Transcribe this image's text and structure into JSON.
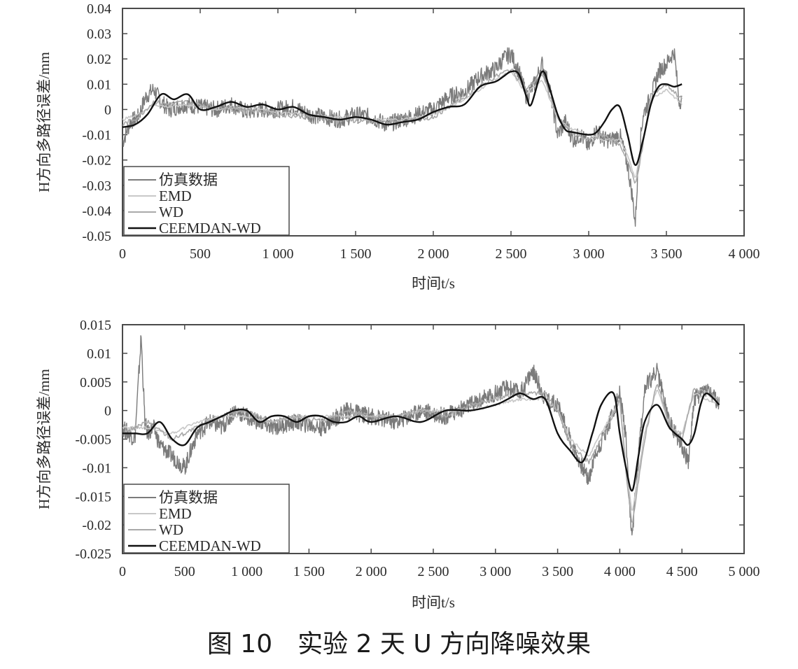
{
  "caption": "图 10　实验 2 天 U 方向降噪效果",
  "colors": {
    "raw": "#7b7b7b",
    "emd": "#c8c8c8",
    "wd": "#a9a9a9",
    "ceemdan": "#111111",
    "axis": "#4a4a4a"
  },
  "chart_data": [
    {
      "type": "line",
      "xlabel": "时间t/s",
      "ylabel": "H方向多路径误差/mm",
      "xlim": [
        0,
        4000
      ],
      "ylim": [
        -0.05,
        0.04
      ],
      "x_ticks": [
        0,
        500,
        1000,
        1500,
        2000,
        2500,
        3000,
        3500,
        4000
      ],
      "x_tick_labels": [
        "0",
        "500",
        "1 000",
        "1 500",
        "2 000",
        "2 500",
        "3 000",
        "3 500",
        "4 000"
      ],
      "y_ticks": [
        -0.05,
        -0.04,
        -0.03,
        -0.02,
        -0.01,
        0,
        0.01,
        0.02,
        0.03,
        0.04
      ],
      "y_tick_labels": [
        "-0.05",
        "-0.04",
        "-0.03",
        "-0.02",
        "-0.01",
        "0",
        "0.01",
        "0.02",
        "0.03",
        "0.04"
      ],
      "legend_position": "bottom-left",
      "series": [
        {
          "name": "仿真数据",
          "color_key": "raw",
          "x": [
            0,
            50,
            100,
            150,
            200,
            250,
            300,
            400,
            500,
            600,
            700,
            800,
            900,
            1000,
            1100,
            1200,
            1300,
            1400,
            1500,
            1600,
            1700,
            1800,
            1900,
            2000,
            2100,
            2200,
            2300,
            2400,
            2450,
            2500,
            2550,
            2600,
            2650,
            2700,
            2750,
            2800,
            2850,
            2900,
            2950,
            3000,
            3050,
            3100,
            3150,
            3200,
            3250,
            3280,
            3300,
            3320,
            3350,
            3400,
            3450,
            3500,
            3550,
            3580,
            3600
          ],
          "y": [
            -0.013,
            -0.005,
            -0.003,
            0.005,
            0.008,
            0.003,
            0.0,
            0.002,
            0.001,
            0.0,
            0.002,
            -0.001,
            0.0,
            0.0,
            0.001,
            -0.002,
            -0.003,
            -0.004,
            -0.002,
            -0.003,
            -0.006,
            -0.004,
            -0.002,
            0.0,
            0.005,
            0.007,
            0.013,
            0.016,
            0.02,
            0.022,
            0.015,
            0.005,
            0.01,
            0.018,
            0.008,
            -0.01,
            -0.005,
            -0.012,
            -0.01,
            -0.015,
            -0.008,
            -0.012,
            -0.012,
            -0.01,
            -0.022,
            -0.034,
            -0.045,
            -0.02,
            -0.002,
            0.005,
            0.015,
            0.018,
            0.023,
            0.004,
            0.003
          ]
        },
        {
          "name": "EMD",
          "color_key": "emd",
          "x": [
            0,
            100,
            200,
            300,
            400,
            600,
            800,
            1000,
            1200,
            1400,
            1600,
            1800,
            2000,
            2200,
            2400,
            2500,
            2600,
            2700,
            2800,
            2900,
            3000,
            3100,
            3200,
            3250,
            3300,
            3350,
            3400,
            3500,
            3600
          ],
          "y": [
            -0.004,
            -0.002,
            0.002,
            0.001,
            0.002,
            0.0,
            0.001,
            -0.001,
            -0.002,
            -0.003,
            -0.004,
            -0.004,
            -0.002,
            0.004,
            0.012,
            0.015,
            0.006,
            0.012,
            -0.004,
            -0.008,
            -0.01,
            -0.012,
            -0.012,
            -0.018,
            -0.028,
            -0.012,
            0.004,
            0.008,
            0.002
          ]
        },
        {
          "name": "WD",
          "color_key": "wd",
          "x": [
            0,
            100,
            200,
            300,
            400,
            600,
            800,
            1000,
            1200,
            1400,
            1600,
            1800,
            2000,
            2200,
            2400,
            2500,
            2600,
            2700,
            2800,
            2900,
            3000,
            3100,
            3200,
            3250,
            3300,
            3350,
            3400,
            3500,
            3600
          ],
          "y": [
            -0.006,
            -0.003,
            0.003,
            0.002,
            0.003,
            0.001,
            0.0,
            -0.002,
            -0.003,
            -0.004,
            -0.005,
            -0.005,
            -0.003,
            0.005,
            0.013,
            0.016,
            0.008,
            0.014,
            -0.003,
            -0.01,
            -0.012,
            -0.01,
            -0.014,
            -0.02,
            -0.03,
            -0.014,
            0.006,
            0.01,
            0.004
          ]
        },
        {
          "name": "CEEMDAN-WD",
          "color_key": "ceemdan",
          "x": [
            0,
            80,
            160,
            250,
            330,
            420,
            500,
            600,
            700,
            800,
            900,
            1000,
            1100,
            1200,
            1300,
            1400,
            1500,
            1600,
            1700,
            1800,
            1900,
            2000,
            2100,
            2200,
            2300,
            2400,
            2450,
            2500,
            2550,
            2600,
            2630,
            2700,
            2750,
            2800,
            2850,
            2900,
            3000,
            3050,
            3100,
            3150,
            3200,
            3250,
            3300,
            3350,
            3400,
            3450,
            3500,
            3550,
            3600
          ],
          "y": [
            -0.007,
            -0.006,
            -0.002,
            0.006,
            0.004,
            0.006,
            0.0,
            0.001,
            0.003,
            0.001,
            0.002,
            0.0,
            0.001,
            -0.002,
            -0.003,
            -0.004,
            -0.003,
            -0.004,
            -0.006,
            -0.005,
            -0.004,
            -0.001,
            0.001,
            0.002,
            0.009,
            0.011,
            0.013,
            0.015,
            0.014,
            0.005,
            0.002,
            0.015,
            0.008,
            -0.002,
            -0.008,
            -0.009,
            -0.01,
            -0.009,
            -0.005,
            0.0,
            0.001,
            -0.01,
            -0.022,
            -0.012,
            0.002,
            0.009,
            0.01,
            0.009,
            0.01
          ]
        }
      ]
    },
    {
      "type": "line",
      "xlabel": "时间t/s",
      "ylabel": "H方向多路径误差/mm",
      "xlim": [
        0,
        5000
      ],
      "ylim": [
        -0.025,
        0.015
      ],
      "x_ticks": [
        0,
        500,
        1000,
        1500,
        2000,
        2500,
        3000,
        3500,
        4000,
        4500,
        5000
      ],
      "x_tick_labels": [
        "0",
        "500",
        "1 000",
        "1 500",
        "2 000",
        "2 500",
        "3 000",
        "3 500",
        "4 000",
        "4 500",
        "5 000"
      ],
      "y_ticks": [
        -0.025,
        -0.02,
        -0.015,
        -0.01,
        -0.005,
        0,
        0.005,
        0.01,
        0.015
      ],
      "y_tick_labels": [
        "-0.025",
        "-0.02",
        "-0.015",
        "-0.01",
        "-0.005",
        "0",
        "0.005",
        "0.01",
        "0.015"
      ],
      "legend_position": "bottom-left",
      "series": [
        {
          "name": "仿真数据",
          "color_key": "raw",
          "x": [
            0,
            100,
            150,
            180,
            200,
            250,
            300,
            400,
            500,
            600,
            700,
            800,
            900,
            1000,
            1200,
            1400,
            1600,
            1800,
            2000,
            2200,
            2400,
            2600,
            2800,
            3000,
            3100,
            3200,
            3300,
            3400,
            3500,
            3600,
            3700,
            3750,
            3800,
            3900,
            4000,
            4050,
            4080,
            4100,
            4150,
            4200,
            4300,
            4400,
            4500,
            4550,
            4600,
            4700,
            4800
          ],
          "y": [
            -0.003,
            -0.005,
            0.013,
            -0.002,
            -0.004,
            -0.003,
            -0.006,
            -0.008,
            -0.01,
            -0.004,
            -0.002,
            -0.003,
            0.0,
            -0.001,
            -0.003,
            -0.002,
            -0.003,
            0.0,
            -0.001,
            -0.002,
            0.0,
            -0.001,
            0.001,
            0.003,
            0.004,
            0.003,
            0.007,
            0.002,
            0.001,
            -0.005,
            -0.01,
            -0.012,
            -0.008,
            -0.003,
            0.003,
            -0.005,
            -0.018,
            -0.022,
            -0.008,
            0.004,
            0.007,
            -0.002,
            -0.006,
            -0.009,
            0.002,
            0.004,
            0.001
          ]
        },
        {
          "name": "EMD",
          "color_key": "emd",
          "x": [
            0,
            200,
            400,
            600,
            800,
            1000,
            1200,
            1400,
            1600,
            1800,
            2000,
            2200,
            2400,
            2600,
            2800,
            3000,
            3200,
            3400,
            3500,
            3600,
            3750,
            3900,
            4000,
            4050,
            4100,
            4200,
            4300,
            4400,
            4500,
            4600,
            4800
          ],
          "y": [
            -0.003,
            -0.003,
            -0.004,
            -0.002,
            -0.001,
            -0.001,
            -0.002,
            -0.001,
            -0.001,
            -0.001,
            -0.001,
            -0.001,
            0.0,
            0.0,
            0.0,
            0.001,
            0.002,
            0.002,
            0.0,
            -0.005,
            -0.008,
            -0.002,
            0.002,
            -0.01,
            -0.018,
            -0.004,
            0.004,
            -0.003,
            -0.004,
            0.003,
            0.001
          ]
        },
        {
          "name": "WD",
          "color_key": "wd",
          "x": [
            0,
            200,
            400,
            600,
            800,
            1000,
            1200,
            1400,
            1600,
            1800,
            2000,
            2200,
            2400,
            2600,
            2800,
            3000,
            3200,
            3400,
            3500,
            3600,
            3750,
            3900,
            4000,
            4050,
            4100,
            4200,
            4300,
            4400,
            4500,
            4600,
            4800
          ],
          "y": [
            -0.004,
            -0.002,
            -0.005,
            -0.003,
            -0.001,
            0.0,
            -0.002,
            -0.001,
            -0.002,
            0.0,
            -0.001,
            -0.001,
            0.0,
            -0.001,
            0.001,
            0.002,
            0.003,
            0.003,
            0.0,
            -0.006,
            -0.009,
            -0.003,
            0.002,
            -0.011,
            -0.02,
            -0.005,
            0.005,
            -0.003,
            -0.005,
            0.004,
            0.002
          ]
        },
        {
          "name": "CEEMDAN-WD",
          "color_key": "ceemdan",
          "x": [
            0,
            100,
            200,
            300,
            400,
            500,
            600,
            700,
            800,
            900,
            1000,
            1100,
            1200,
            1300,
            1400,
            1500,
            1600,
            1700,
            1800,
            1900,
            2000,
            2200,
            2400,
            2600,
            2800,
            3000,
            3100,
            3200,
            3300,
            3400,
            3500,
            3600,
            3700,
            3780,
            3850,
            3950,
            4000,
            4050,
            4100,
            4150,
            4200,
            4300,
            4400,
            4500,
            4550,
            4600,
            4650,
            4700,
            4800
          ],
          "y": [
            -0.004,
            -0.004,
            -0.004,
            -0.002,
            -0.005,
            -0.006,
            -0.003,
            -0.002,
            -0.001,
            0.0,
            0.0,
            -0.002,
            -0.001,
            -0.001,
            -0.002,
            -0.001,
            -0.001,
            -0.002,
            -0.002,
            -0.001,
            -0.002,
            -0.001,
            -0.002,
            0.0,
            0.0,
            0.001,
            0.002,
            0.003,
            0.002,
            0.002,
            -0.004,
            -0.007,
            -0.009,
            -0.004,
            0.001,
            0.003,
            -0.004,
            -0.01,
            -0.014,
            -0.008,
            -0.002,
            0.001,
            -0.003,
            -0.005,
            -0.006,
            -0.004,
            0.001,
            0.003,
            0.001
          ]
        }
      ]
    }
  ]
}
